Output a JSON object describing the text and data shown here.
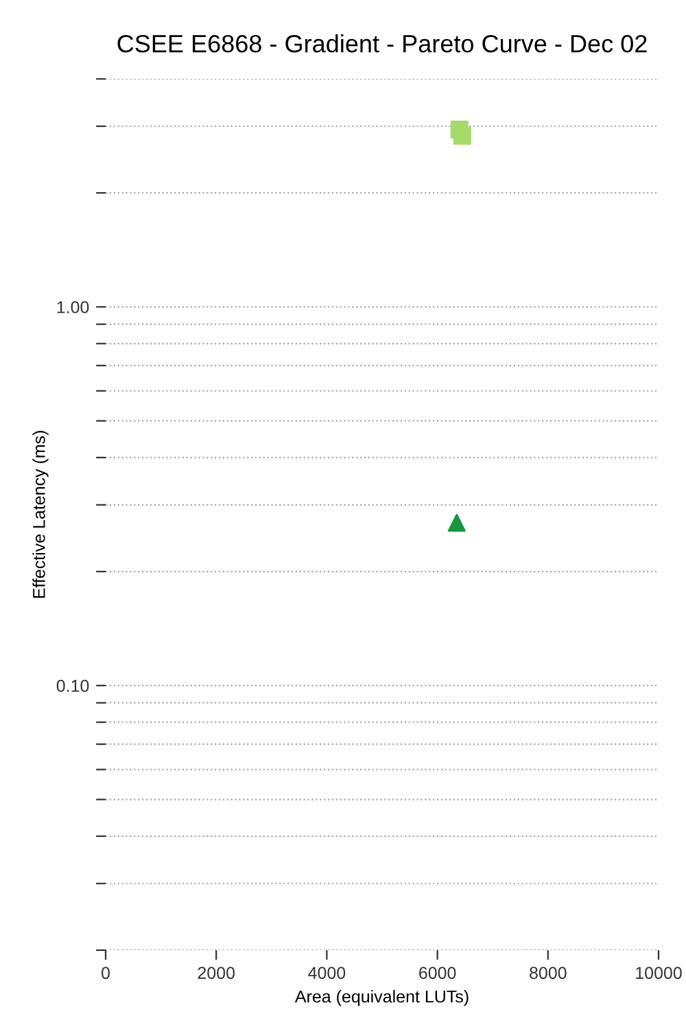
{
  "chart_data": {
    "type": "scatter",
    "title": "CSEE E6868 - Gradient - Pareto Curve - Dec 02",
    "xlabel": "Area (equivalent LUTs)",
    "ylabel": "Effective Latency (ms)",
    "log": "y",
    "grid": "y",
    "line_style": "dotted",
    "xlim": [
      0,
      10000
    ],
    "xticks": [
      0,
      2000,
      4000,
      6000,
      8000,
      10000
    ],
    "ylim": [
      0.02,
      4
    ],
    "yticks": [
      {
        "value": 0.02,
        "label": null
      },
      {
        "value": 0.03,
        "label": null
      },
      {
        "value": 0.04,
        "label": null
      },
      {
        "value": 0.05,
        "label": null
      },
      {
        "value": 0.06,
        "label": null
      },
      {
        "value": 0.07,
        "label": null
      },
      {
        "value": 0.08,
        "label": null
      },
      {
        "value": 0.09,
        "label": null
      },
      {
        "value": 0.1,
        "label": "0.10"
      },
      {
        "value": 0.2,
        "label": null
      },
      {
        "value": 0.3,
        "label": null
      },
      {
        "value": 0.4,
        "label": null
      },
      {
        "value": 0.5,
        "label": null
      },
      {
        "value": 0.6,
        "label": null
      },
      {
        "value": 0.7,
        "label": null
      },
      {
        "value": 0.8,
        "label": null
      },
      {
        "value": 0.9,
        "label": null
      },
      {
        "value": 1,
        "label": "1.00"
      },
      {
        "value": 2,
        "label": null
      },
      {
        "value": 3,
        "label": null
      },
      {
        "value": 4,
        "label": null
      }
    ],
    "series": [
      {
        "color": "#a6d96a",
        "marker": "square",
        "x": [
          6400,
          6450
        ],
        "values": [
          2.94,
          2.83
        ]
      },
      {
        "color": "#1a9641",
        "marker": "triangle",
        "x": [
          6350
        ],
        "values": [
          0.269
        ]
      }
    ]
  }
}
